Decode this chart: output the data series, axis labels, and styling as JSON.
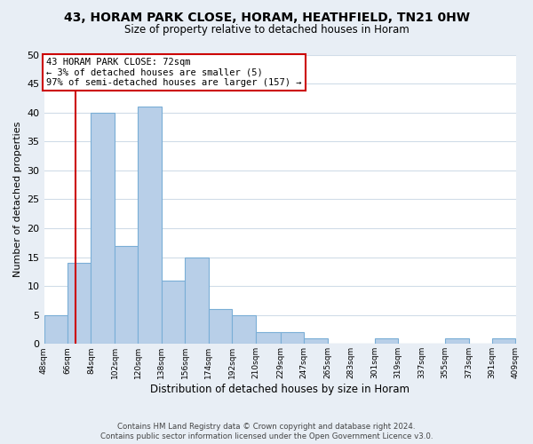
{
  "title": "43, HORAM PARK CLOSE, HORAM, HEATHFIELD, TN21 0HW",
  "subtitle": "Size of property relative to detached houses in Horam",
  "xlabel": "Distribution of detached houses by size in Horam",
  "ylabel": "Number of detached properties",
  "bin_edges": [
    48,
    66,
    84,
    102,
    120,
    138,
    156,
    174,
    192,
    210,
    229,
    247,
    265,
    283,
    301,
    319,
    337,
    355,
    373,
    391,
    409
  ],
  "bin_labels": [
    "48sqm",
    "66sqm",
    "84sqm",
    "102sqm",
    "120sqm",
    "138sqm",
    "156sqm",
    "174sqm",
    "192sqm",
    "210sqm",
    "229sqm",
    "247sqm",
    "265sqm",
    "283sqm",
    "301sqm",
    "319sqm",
    "337sqm",
    "355sqm",
    "373sqm",
    "391sqm",
    "409sqm"
  ],
  "counts": [
    5,
    14,
    40,
    17,
    41,
    11,
    15,
    6,
    5,
    2,
    2,
    1,
    0,
    0,
    1,
    0,
    0,
    1,
    0,
    1
  ],
  "bar_color": "#b8cfe8",
  "bar_edge_color": "#7aaed6",
  "vline_x": 72,
  "vline_color": "#cc0000",
  "annotation_text": "43 HORAM PARK CLOSE: 72sqm\n← 3% of detached houses are smaller (5)\n97% of semi-detached houses are larger (157) →",
  "annotation_box_color": "white",
  "annotation_box_edge": "#cc0000",
  "ylim": [
    0,
    50
  ],
  "yticks": [
    0,
    5,
    10,
    15,
    20,
    25,
    30,
    35,
    40,
    45,
    50
  ],
  "footer_line1": "Contains HM Land Registry data © Crown copyright and database right 2024.",
  "footer_line2": "Contains public sector information licensed under the Open Government Licence v3.0.",
  "fig_background_color": "#e8eef5",
  "axes_background_color": "#ffffff",
  "grid_color": "#d0dce8"
}
